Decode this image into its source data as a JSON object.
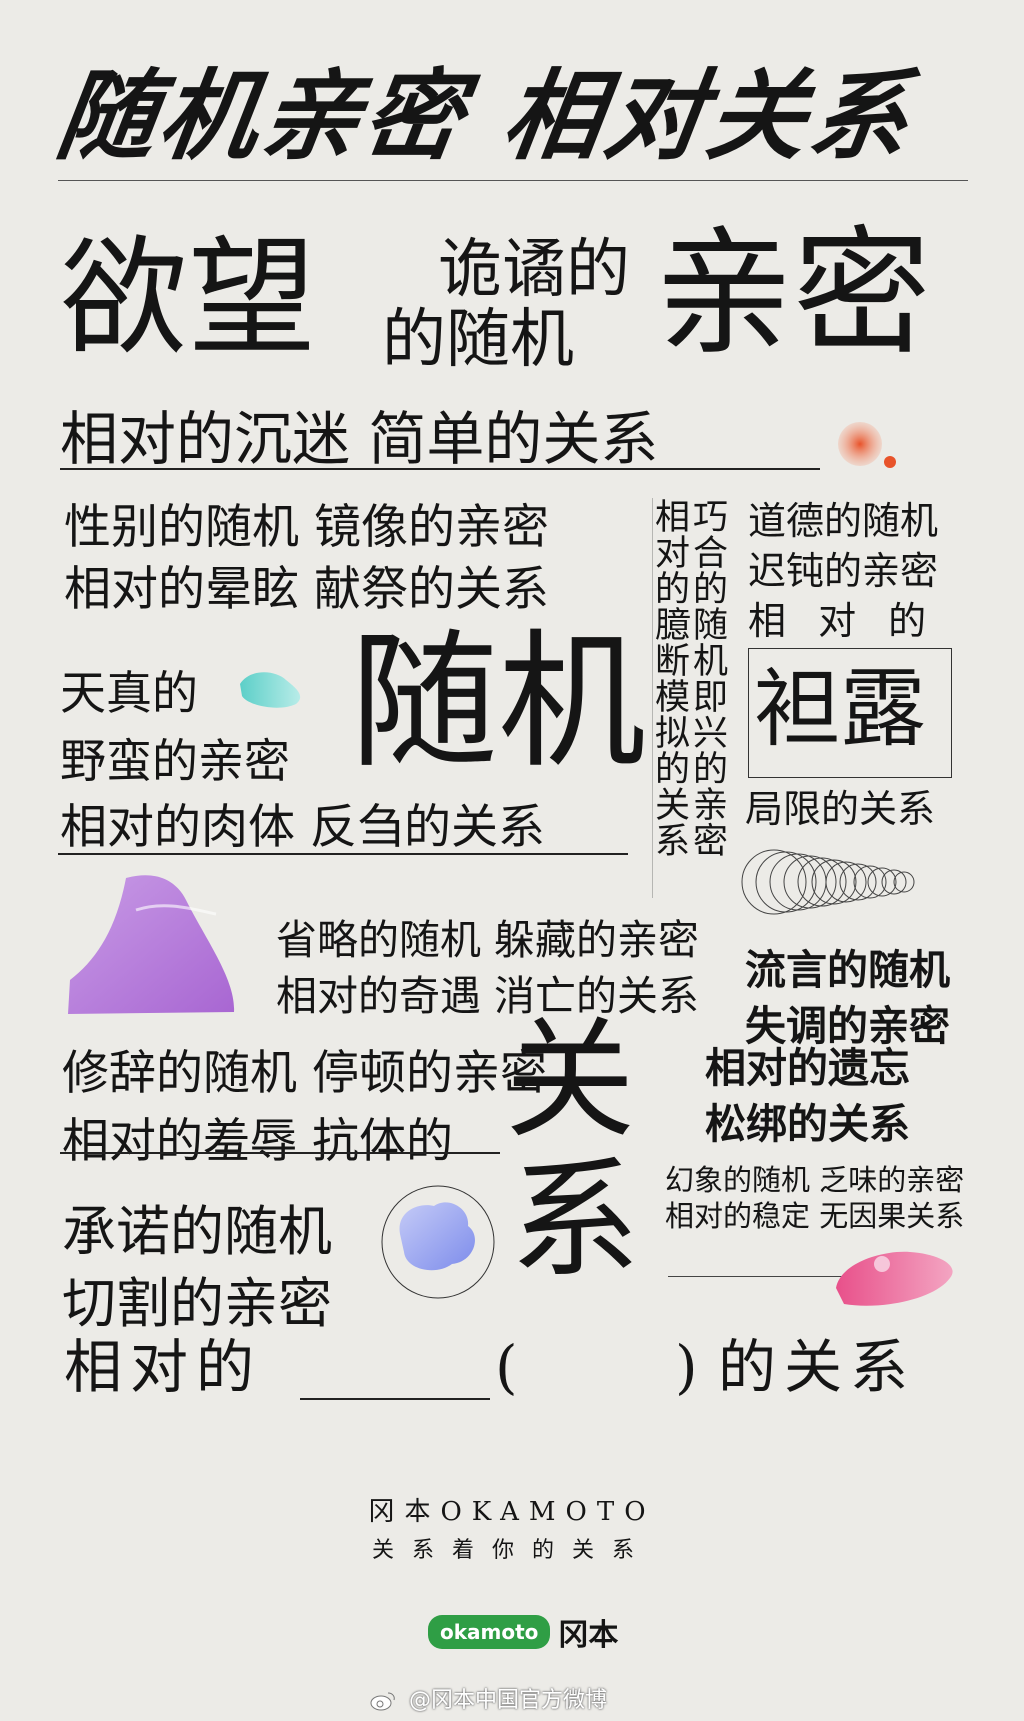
{
  "title": "随机亲密  相对关系",
  "hero": {
    "yuwang": "欲望",
    "guijue": "诡谲的",
    "desuiji": "的随机",
    "qinmi": "亲密",
    "chenmi": "相对的沉迷 简单的关系"
  },
  "left_block": {
    "line1": "性别的随机 镜像的亲密",
    "line2": "相对的晕眩 献祭的关系",
    "tianzhen": "天真的",
    "yeman": "野蛮的亲密",
    "routi": "相对的肉体 反刍的关系"
  },
  "center_big": "随机",
  "vertical": {
    "col_right": "相对的臆断模拟的关系",
    "col_left": "巧合的随机即兴的亲密"
  },
  "right_block": {
    "line1": "道德的随机",
    "line2": "迟钝的亲密",
    "line3": "相 对 的",
    "tanlu": "袒露",
    "juxian": "局限的关系"
  },
  "mid_block": {
    "line1": "省略的随机 躲藏的亲密",
    "line2": "相对的奇遇 消亡的关系"
  },
  "liuyan_block": {
    "line1": "流言的随机",
    "line2": "失调的亲密"
  },
  "xiuci_block": {
    "line1": "修辞的随机 停顿的亲密",
    "line2": "相对的羞辱 抗体的"
  },
  "guanxi": {
    "guan": "关",
    "xi": "系"
  },
  "yiwang_block": {
    "line1": "相对的遗忘",
    "line2": "松绑的关系"
  },
  "huanxiang_block": {
    "line1": "幻象的随机 乏味的亲密",
    "line2": "相对的稳定 无因果关系"
  },
  "chengnuo_block": {
    "line1": "承诺的随机",
    "line2": "切割的亲密"
  },
  "final_line": {
    "start": "相对的",
    "open": "(",
    "close": ")",
    "end": "的关系"
  },
  "footer": {
    "brand": "冈本OKAMOTO",
    "slogan": "关系着你的关系",
    "logo_pill": "okamoto",
    "logo_cn": "冈本",
    "weibo": "@冈本中国官方微博"
  },
  "colors": {
    "background": "#ecebe7",
    "text": "#151515",
    "blob_orange": "#e8532a",
    "blob_teal": "#5ccfc8",
    "blob_purple": "#b57ad8",
    "blob_blue": "#8c9cf0",
    "blob_pink": "#e8508a",
    "logo_green": "#2f9e45"
  }
}
